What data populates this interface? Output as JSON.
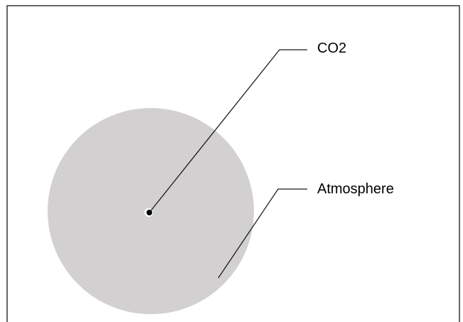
{
  "labels": {
    "molecule": "CO2",
    "atmosphere": "Atmosphere"
  },
  "colors": {
    "frame": "#333333",
    "atmosphere_fill": "#d2d0d1",
    "leader_line": "#1a1a1a",
    "molecule_dot": "#000000",
    "text": "#000000"
  }
}
